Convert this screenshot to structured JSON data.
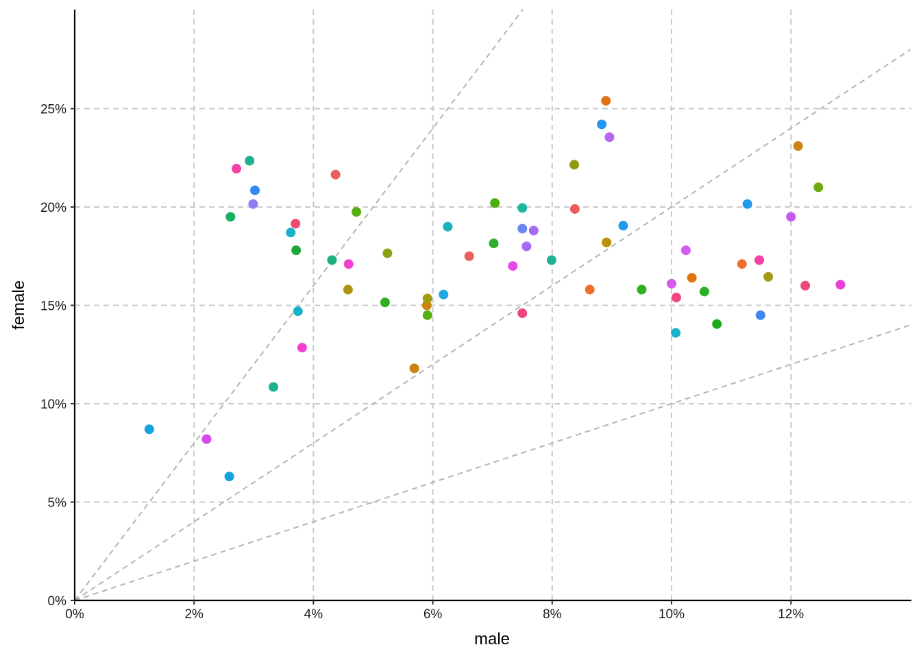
{
  "chart_data": {
    "type": "scatter",
    "title": "",
    "xlabel": "male",
    "ylabel": "female",
    "xlim": [
      0,
      0.14
    ],
    "ylim": [
      0,
      0.3
    ],
    "x_ticks": [
      0,
      0.02,
      0.04,
      0.06,
      0.08,
      0.1,
      0.12
    ],
    "x_tick_labels": [
      "0%",
      "2%",
      "4%",
      "6%",
      "8%",
      "10%",
      "12%"
    ],
    "y_ticks": [
      0,
      0.05,
      0.1,
      0.15,
      0.2,
      0.25
    ],
    "y_tick_labels": [
      "0%",
      "5%",
      "10%",
      "15%",
      "20%",
      "25%"
    ],
    "grid": true,
    "grid_style": "dashed",
    "legend": "none",
    "reference_lines": [
      {
        "slope": 4
      },
      {
        "slope": 2
      },
      {
        "slope": 1
      }
    ],
    "points": [
      {
        "x": 0.0125,
        "y": 0.087,
        "color": "#13A3E1"
      },
      {
        "x": 0.0221,
        "y": 0.082,
        "color": "#D848F0"
      },
      {
        "x": 0.0259,
        "y": 0.063,
        "color": "#13A3E1"
      },
      {
        "x": 0.0261,
        "y": 0.195,
        "color": "#17B05E"
      },
      {
        "x": 0.0271,
        "y": 0.2195,
        "color": "#F33FA6"
      },
      {
        "x": 0.0293,
        "y": 0.2235,
        "color": "#1CB190"
      },
      {
        "x": 0.0299,
        "y": 0.2015,
        "color": "#8E7CF5"
      },
      {
        "x": 0.0302,
        "y": 0.2085,
        "color": "#3288F4"
      },
      {
        "x": 0.0333,
        "y": 0.1085,
        "color": "#1CB190"
      },
      {
        "x": 0.0362,
        "y": 0.187,
        "color": "#18B2CA"
      },
      {
        "x": 0.037,
        "y": 0.1915,
        "color": "#EE4873"
      },
      {
        "x": 0.0371,
        "y": 0.178,
        "color": "#1DA834"
      },
      {
        "x": 0.0374,
        "y": 0.147,
        "color": "#18B2CA"
      },
      {
        "x": 0.0381,
        "y": 0.1285,
        "color": "#F33FD0"
      },
      {
        "x": 0.0431,
        "y": 0.173,
        "color": "#1CB17B"
      },
      {
        "x": 0.0437,
        "y": 0.2165,
        "color": "#EB5E5A"
      },
      {
        "x": 0.0458,
        "y": 0.158,
        "color": "#AE9410"
      },
      {
        "x": 0.0459,
        "y": 0.171,
        "color": "#F33FD0"
      },
      {
        "x": 0.0472,
        "y": 0.1975,
        "color": "#57AE0F"
      },
      {
        "x": 0.052,
        "y": 0.1515,
        "color": "#2EAF20"
      },
      {
        "x": 0.0524,
        "y": 0.1765,
        "color": "#8EA114"
      },
      {
        "x": 0.0569,
        "y": 0.118,
        "color": "#C8840E"
      },
      {
        "x": 0.059,
        "y": 0.15,
        "color": "#C8840E"
      },
      {
        "x": 0.0591,
        "y": 0.1535,
        "color": "#A59A13"
      },
      {
        "x": 0.0591,
        "y": 0.145,
        "color": "#57AE0F"
      },
      {
        "x": 0.0618,
        "y": 0.1555,
        "color": "#1FA8E2"
      },
      {
        "x": 0.0625,
        "y": 0.19,
        "color": "#18B2BA"
      },
      {
        "x": 0.0661,
        "y": 0.175,
        "color": "#EB5E5A"
      },
      {
        "x": 0.0702,
        "y": 0.1815,
        "color": "#2EAF2C"
      },
      {
        "x": 0.0704,
        "y": 0.202,
        "color": "#4AAE0D"
      },
      {
        "x": 0.0734,
        "y": 0.17,
        "color": "#E547EB"
      },
      {
        "x": 0.075,
        "y": 0.189,
        "color": "#6B87F4"
      },
      {
        "x": 0.075,
        "y": 0.1995,
        "color": "#1CB5A0"
      },
      {
        "x": 0.075,
        "y": 0.146,
        "color": "#F0477A"
      },
      {
        "x": 0.0757,
        "y": 0.18,
        "color": "#A56CF2"
      },
      {
        "x": 0.0769,
        "y": 0.188,
        "color": "#A56CF2"
      },
      {
        "x": 0.0799,
        "y": 0.173,
        "color": "#1CB190"
      },
      {
        "x": 0.0837,
        "y": 0.2215,
        "color": "#8E9A0C"
      },
      {
        "x": 0.0838,
        "y": 0.199,
        "color": "#EB5E5A"
      },
      {
        "x": 0.0863,
        "y": 0.158,
        "color": "#EE6F2A"
      },
      {
        "x": 0.0883,
        "y": 0.242,
        "color": "#1F98EE"
      },
      {
        "x": 0.089,
        "y": 0.254,
        "color": "#E07411"
      },
      {
        "x": 0.0891,
        "y": 0.182,
        "color": "#B8900A"
      },
      {
        "x": 0.0896,
        "y": 0.2355,
        "color": "#B767F3"
      },
      {
        "x": 0.0919,
        "y": 0.1905,
        "color": "#1F98EE"
      },
      {
        "x": 0.095,
        "y": 0.158,
        "color": "#2EAF20"
      },
      {
        "x": 0.1,
        "y": 0.161,
        "color": "#D45CF1"
      },
      {
        "x": 0.1007,
        "y": 0.136,
        "color": "#18B2CA"
      },
      {
        "x": 0.1008,
        "y": 0.154,
        "color": "#F0477A"
      },
      {
        "x": 0.1024,
        "y": 0.178,
        "color": "#D45CF1"
      },
      {
        "x": 0.1034,
        "y": 0.164,
        "color": "#E07411"
      },
      {
        "x": 0.1055,
        "y": 0.157,
        "color": "#2EAF2C"
      },
      {
        "x": 0.1076,
        "y": 0.1405,
        "color": "#1DA81E"
      },
      {
        "x": 0.1118,
        "y": 0.171,
        "color": "#EE6F2A"
      },
      {
        "x": 0.1127,
        "y": 0.2015,
        "color": "#1F98EE"
      },
      {
        "x": 0.1147,
        "y": 0.173,
        "color": "#F33FA6"
      },
      {
        "x": 0.1149,
        "y": 0.145,
        "color": "#3E88EE"
      },
      {
        "x": 0.1162,
        "y": 0.1645,
        "color": "#A59A13"
      },
      {
        "x": 0.12,
        "y": 0.195,
        "color": "#C55CF2"
      },
      {
        "x": 0.1212,
        "y": 0.231,
        "color": "#C8840E"
      },
      {
        "x": 0.1224,
        "y": 0.16,
        "color": "#F0477A"
      },
      {
        "x": 0.1246,
        "y": 0.21,
        "color": "#6FA810"
      },
      {
        "x": 0.1283,
        "y": 0.1605,
        "color": "#E83FD8"
      }
    ]
  }
}
